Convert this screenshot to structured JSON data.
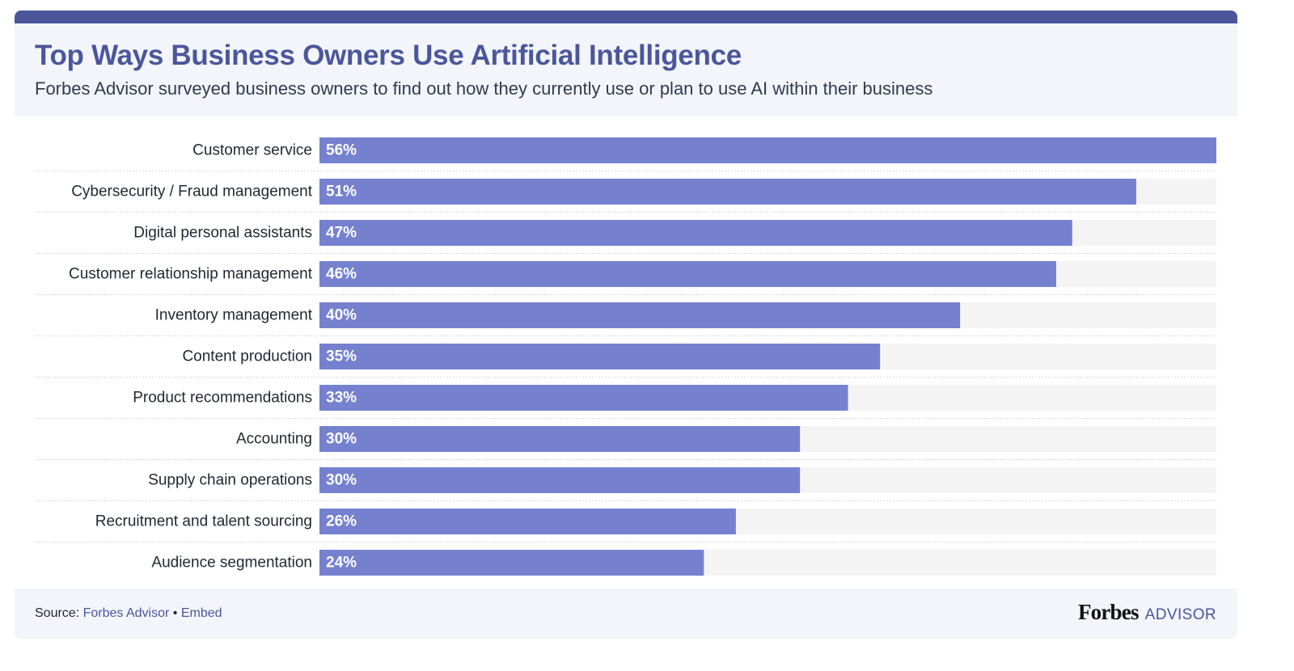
{
  "header": {
    "title": "Top Ways Business Owners Use Artificial Intelligence",
    "subtitle": "Forbes Advisor surveyed business owners to find out how they currently use or plan to use AI within their business"
  },
  "footer": {
    "source_label": "Source:",
    "source_link": "Forbes Advisor",
    "separator": "•",
    "embed_link": "Embed",
    "brand_primary": "Forbes",
    "brand_secondary": "ADVISOR"
  },
  "colors": {
    "bar": "#7581cf",
    "track": "#f4f4f5",
    "accent": "#4b569b",
    "header_bg": "#f3f5fb"
  },
  "chart_data": {
    "type": "bar",
    "orientation": "horizontal",
    "categories": [
      "Customer service",
      "Cybersecurity / Fraud management",
      "Digital personal assistants",
      "Customer relationship management",
      "Inventory management",
      "Content production",
      "Product recommendations",
      "Accounting",
      "Supply chain operations",
      "Recruitment and talent sourcing",
      "Audience segmentation"
    ],
    "values": [
      56,
      51,
      47,
      46,
      40,
      35,
      33,
      30,
      30,
      26,
      24
    ],
    "value_labels": [
      "56%",
      "51%",
      "47%",
      "46%",
      "40%",
      "35%",
      "33%",
      "30%",
      "30%",
      "26%",
      "24%"
    ],
    "xlim": [
      0,
      56
    ],
    "unit": "%",
    "grid": false,
    "legend": "none"
  }
}
